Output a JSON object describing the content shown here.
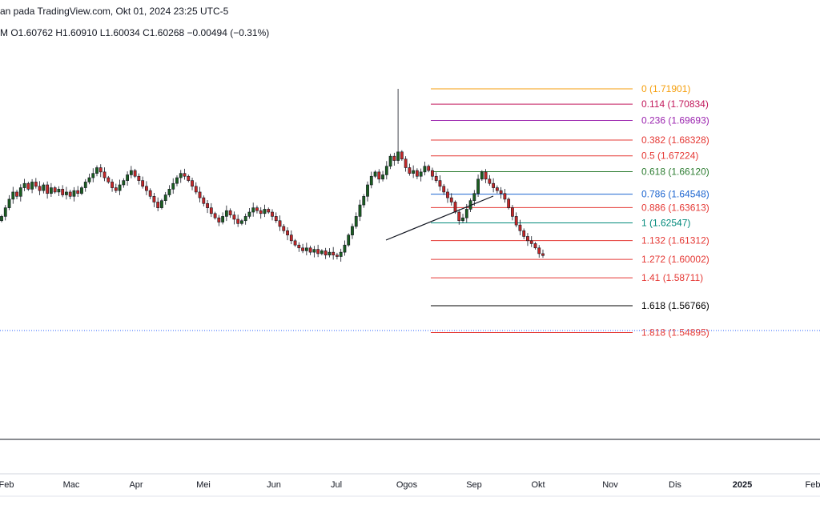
{
  "header": {
    "title": "an pada TradingView.com, Okt 01, 2024 23:25 UTC-5",
    "ohlc": "M  O1.60762  H1.60910  L1.60034  C1.60268  −0.00494 (−0.31%)"
  },
  "chart_data": {
    "type": "candlestick",
    "last_price": 1.60268,
    "x_ticks": [
      "Feb",
      "Mac",
      "Apr",
      "Mei",
      "Jun",
      "Jul",
      "Ogos",
      "Sep",
      "Okt",
      "Nov",
      "Dis",
      "2025",
      "Feb"
    ],
    "bold_ticks": [
      "2025"
    ],
    "fib_levels": [
      {
        "ratio": "0",
        "price": "1.71901",
        "value": 1.71901,
        "color": "#f59e0b"
      },
      {
        "ratio": "0.114",
        "price": "1.70834",
        "value": 1.70834,
        "color": "#c2185b"
      },
      {
        "ratio": "0.236",
        "price": "1.69693",
        "value": 1.69693,
        "color": "#9c27b0"
      },
      {
        "ratio": "0.382",
        "price": "1.68328",
        "value": 1.68328,
        "color": "#e53935"
      },
      {
        "ratio": "0.5",
        "price": "1.67224",
        "value": 1.67224,
        "color": "#e53935"
      },
      {
        "ratio": "0.618",
        "price": "1.66120",
        "value": 1.6612,
        "color": "#2e7d32"
      },
      {
        "ratio": "0.786",
        "price": "1.64548",
        "value": 1.64548,
        "color": "#1e66d0"
      },
      {
        "ratio": "0.886",
        "price": "1.63613",
        "value": 1.63613,
        "color": "#e53935"
      },
      {
        "ratio": "1",
        "price": "1.62547",
        "value": 1.62547,
        "color": "#00897b"
      },
      {
        "ratio": "1.132",
        "price": "1.61312",
        "value": 1.61312,
        "color": "#e53935"
      },
      {
        "ratio": "1.272",
        "price": "1.60002",
        "value": 1.60002,
        "color": "#e53935"
      },
      {
        "ratio": "1.41",
        "price": "1.58711",
        "value": 1.58711,
        "color": "#e53935"
      },
      {
        "ratio": "1.618",
        "price": "1.56766",
        "value": 1.56766,
        "color": "#000000"
      },
      {
        "ratio": "1.818",
        "price": "1.54895",
        "value": 1.54895,
        "color": "#e53935"
      }
    ],
    "closes": [
      1.63,
      1.636,
      1.642,
      1.647,
      1.644,
      1.65,
      1.653,
      1.649,
      1.654,
      1.651,
      1.648,
      1.652,
      1.646,
      1.65,
      1.647,
      1.649,
      1.645,
      1.647,
      1.644,
      1.648,
      1.646,
      1.65,
      1.654,
      1.657,
      1.66,
      1.664,
      1.661,
      1.657,
      1.654,
      1.65,
      1.648,
      1.652,
      1.655,
      1.659,
      1.662,
      1.658,
      1.655,
      1.651,
      1.648,
      1.644,
      1.64,
      1.636,
      1.641,
      1.645,
      1.649,
      1.653,
      1.657,
      1.66,
      1.658,
      1.655,
      1.651,
      1.647,
      1.643,
      1.639,
      1.636,
      1.632,
      1.629,
      1.626,
      1.63,
      1.634,
      1.631,
      1.628,
      1.625,
      1.627,
      1.63,
      1.633,
      1.636,
      1.634,
      1.632,
      1.635,
      1.633,
      1.63,
      1.627,
      1.623,
      1.62,
      1.617,
      1.613,
      1.61,
      1.608,
      1.606,
      1.608,
      1.605,
      1.607,
      1.604,
      1.606,
      1.603,
      1.605,
      1.603,
      1.602,
      1.605,
      1.61,
      1.617,
      1.623,
      1.63,
      1.638,
      1.644,
      1.652,
      1.658,
      1.661,
      1.656,
      1.659,
      1.665,
      1.672,
      1.669,
      1.675,
      1.67,
      1.664,
      1.66,
      1.662,
      1.658,
      1.661,
      1.665,
      1.662,
      1.658,
      1.655,
      1.651,
      1.647,
      1.643,
      1.64,
      1.633,
      1.627,
      1.629,
      1.635,
      1.641,
      1.646,
      1.656,
      1.661,
      1.656,
      1.653,
      1.65,
      1.648,
      1.646,
      1.642,
      1.636,
      1.63,
      1.624,
      1.62,
      1.616,
      1.613,
      1.611,
      1.608,
      1.604,
      1.6027
    ]
  }
}
